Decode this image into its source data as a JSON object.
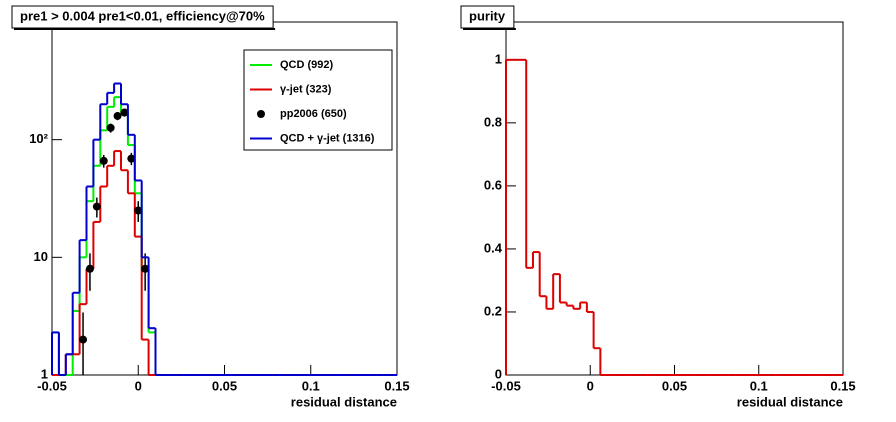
{
  "chart_data": [
    {
      "type": "histogram",
      "title": "pre1 > 0.004  pre1<0.01, efficiency@70%",
      "x_label": "residual distance",
      "log_y": true,
      "legend": "upper right",
      "xlim": [
        -0.05,
        0.15
      ],
      "xticks": [
        -0.05,
        0,
        0.05,
        0.1,
        0.15
      ],
      "ylim": [
        1,
        1000
      ],
      "yticks": [
        1,
        10,
        {
          "value": 100,
          "label": "10²"
        }
      ],
      "bins": [
        -0.05,
        -0.046,
        -0.042,
        -0.038,
        -0.034,
        -0.03,
        -0.026,
        -0.022,
        -0.018,
        -0.014,
        -0.01,
        -0.006,
        -0.002,
        0.002,
        0.006,
        0.01,
        0.014,
        0.018,
        0.022,
        0.026,
        0.03,
        0.034,
        0.038,
        0.042,
        0.046,
        0.05,
        0.054,
        0.058,
        0.062,
        0.066,
        0.07,
        0.074,
        0.078,
        0.082,
        0.086,
        0.09,
        0.094,
        0.098,
        0.102,
        0.106,
        0.11,
        0.114,
        0.118,
        0.122,
        0.126,
        0.13,
        0.134,
        0.138,
        0.142,
        0.146,
        0.15
      ],
      "series": [
        {
          "name": "QCD (992)",
          "color": "#00ee00",
          "values": [
            2.3,
            0,
            0,
            3.5,
            10,
            30,
            60,
            120,
            190,
            230,
            170,
            90,
            35,
            8,
            2.3,
            0,
            0,
            0,
            0,
            0,
            0,
            0,
            0,
            0,
            0,
            0,
            0,
            0,
            0,
            0,
            0,
            0,
            0,
            0,
            0,
            0,
            0,
            0,
            0,
            0,
            0,
            0,
            0,
            0,
            0,
            0,
            0,
            0,
            0,
            0
          ]
        },
        {
          "name": "γ-jet (323)",
          "color": "#dd0000",
          "values": [
            0,
            0,
            1.5,
            1.5,
            4,
            8,
            20,
            40,
            60,
            80,
            55,
            35,
            15,
            2,
            0,
            0,
            0,
            0,
            0,
            0,
            0,
            0,
            0,
            0,
            0,
            0,
            0,
            0,
            0,
            0,
            0,
            0,
            0,
            0,
            0,
            0,
            0,
            0,
            0,
            0,
            0,
            0,
            0,
            0,
            0,
            0,
            0,
            0,
            0,
            0
          ]
        },
        {
          "name": "pp2006 (650)",
          "color": "#000000",
          "x": [
            -0.032,
            -0.028,
            -0.024,
            -0.02,
            -0.016,
            -0.012,
            -0.008,
            -0.004,
            0,
            0.004
          ],
          "values": [
            2,
            8,
            27,
            66,
            126,
            159,
            170,
            69,
            25,
            8
          ],
          "errors": [
            1.4,
            2.8,
            5.2,
            8.1,
            11.2,
            12.6,
            13,
            8.3,
            5,
            2.8
          ]
        },
        {
          "name": "QCD + γ-jet (1316)",
          "color": "#0000cc",
          "values": [
            2.3,
            0,
            1.5,
            5,
            14,
            40,
            100,
            200,
            250,
            300,
            200,
            110,
            45,
            10,
            2.5,
            0,
            0,
            0,
            0,
            0,
            0,
            0,
            0,
            0,
            0,
            0,
            0,
            0,
            0,
            0,
            0,
            0,
            0,
            0,
            0,
            0,
            0,
            0,
            0,
            0,
            0,
            0,
            0,
            0,
            0,
            0,
            0,
            0,
            0,
            0
          ]
        }
      ]
    },
    {
      "type": "histogram",
      "title": "purity",
      "x_label": "residual distance",
      "log_y": false,
      "xlim": [
        -0.05,
        0.15
      ],
      "xticks": [
        -0.05,
        0,
        0.05,
        0.1,
        0.15
      ],
      "ylim": [
        0,
        1.12
      ],
      "yticks": [
        0,
        0.2,
        0.4,
        0.6,
        0.8,
        1
      ],
      "bins": [
        -0.05,
        -0.046,
        -0.042,
        -0.038,
        -0.034,
        -0.03,
        -0.026,
        -0.022,
        -0.018,
        -0.014,
        -0.01,
        -0.006,
        -0.002,
        0.002,
        0.006,
        0.01,
        0.014,
        0.018,
        0.022,
        0.026,
        0.03,
        0.034,
        0.038,
        0.042,
        0.046,
        0.05,
        0.054,
        0.058,
        0.062,
        0.066,
        0.07,
        0.074,
        0.078,
        0.082,
        0.086,
        0.09,
        0.094,
        0.098,
        0.102,
        0.106,
        0.11,
        0.114,
        0.118,
        0.122,
        0.126,
        0.13,
        0.134,
        0.138,
        0.142,
        0.146,
        0.15
      ],
      "series": [
        {
          "color": "#dd0000",
          "values": [
            1,
            1,
            1,
            0.34,
            0.39,
            0.25,
            0.21,
            0.32,
            0.23,
            0.22,
            0.21,
            0.23,
            0.2,
            0.085,
            0,
            0,
            0,
            0,
            0,
            0,
            0,
            0,
            0,
            0,
            0,
            0,
            0,
            0,
            0,
            0,
            0,
            0,
            0,
            0,
            0,
            0,
            0,
            0,
            0,
            0,
            0,
            0,
            0,
            0,
            0,
            0,
            0,
            0,
            0,
            0
          ]
        }
      ]
    }
  ]
}
